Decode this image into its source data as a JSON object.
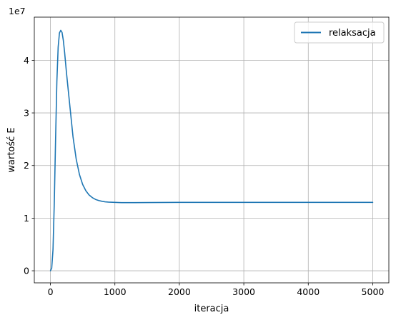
{
  "chart_data": {
    "type": "line",
    "title": "",
    "xlabel": "iteracja",
    "ylabel": "wartość E",
    "y_offset_label": "1e7",
    "xlim": [
      -250,
      5250
    ],
    "ylim": [
      -2300000,
      48200000
    ],
    "grid": true,
    "legend_position": "top-right",
    "x_ticks": [
      0,
      1000,
      2000,
      3000,
      4000,
      5000
    ],
    "x_tick_labels": [
      "0",
      "1000",
      "2000",
      "3000",
      "4000",
      "5000"
    ],
    "y_ticks": [
      0,
      10000000,
      20000000,
      30000000,
      40000000
    ],
    "y_tick_labels": [
      "0",
      "1",
      "2",
      "3",
      "4"
    ],
    "series": [
      {
        "name": "relaksacja",
        "color": "#1f77b4",
        "x": [
          0,
          20,
          40,
          60,
          80,
          100,
          120,
          140,
          160,
          180,
          200,
          220,
          250,
          300,
          350,
          400,
          450,
          500,
          550,
          600,
          650,
          700,
          750,
          800,
          850,
          900,
          1000,
          1100,
          1200,
          1300,
          1500,
          2000,
          3000,
          4000,
          5000
        ],
        "y": [
          0,
          500000,
          4000000,
          13000000,
          25000000,
          36000000,
          42500000,
          45200000,
          45700000,
          45300000,
          43800000,
          41500000,
          37500000,
          31500000,
          25500000,
          21200000,
          18300000,
          16400000,
          15200000,
          14400000,
          13900000,
          13550000,
          13350000,
          13200000,
          13100000,
          13050000,
          13000000,
          12950000,
          12950000,
          12950000,
          12970000,
          13000000,
          13000000,
          13000000,
          13000000
        ]
      }
    ]
  }
}
